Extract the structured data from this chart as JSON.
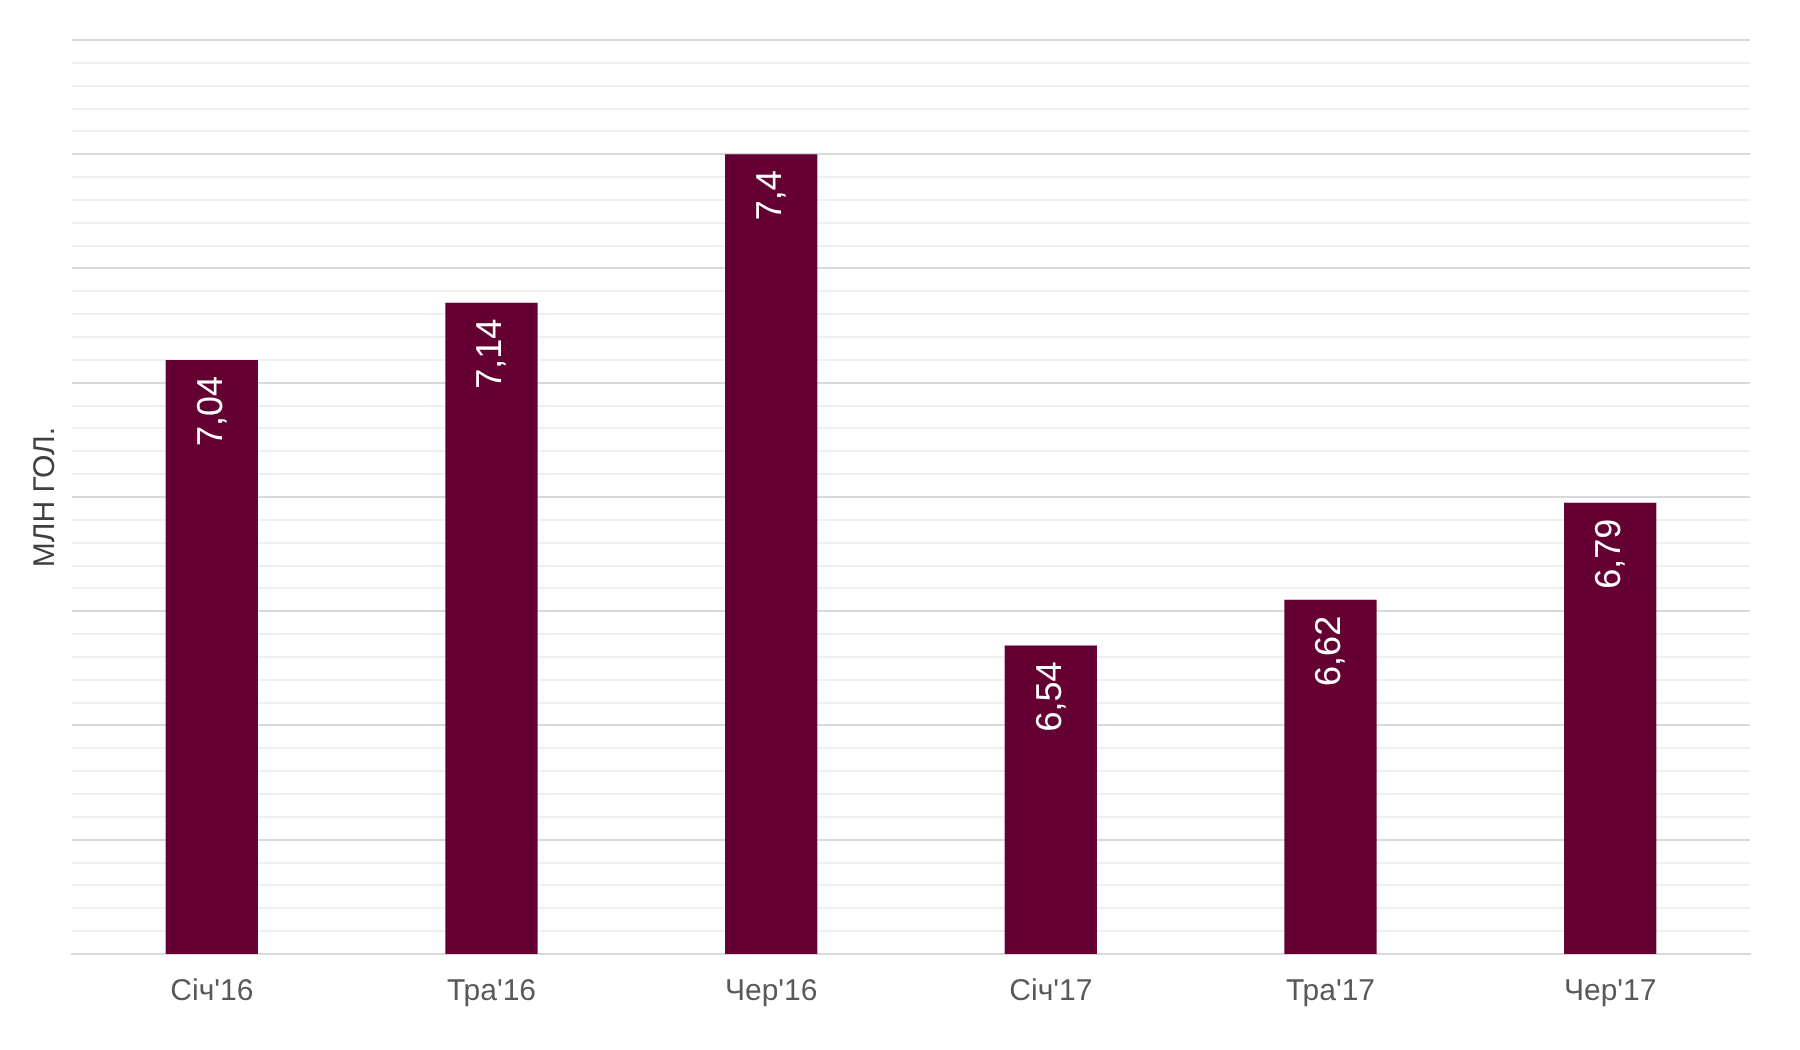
{
  "chart_data": {
    "type": "bar",
    "ylabel": "МЛН ГОЛ.",
    "categories": [
      "Січ'16",
      "Тра'16",
      "Чер'16",
      "Січ'17",
      "Тра'17",
      "Чер'17"
    ],
    "values": [
      7.04,
      7.14,
      7.4,
      6.54,
      6.62,
      6.79
    ],
    "value_labels": [
      "7,04",
      "7,14",
      "7,4",
      "6,54",
      "6,62",
      "6,79"
    ],
    "color": "#650032",
    "ylim": [
      6,
      7.6
    ],
    "yticks": [
      {
        "value": 6,
        "label": null
      },
      {
        "value": 6.04,
        "label": null
      },
      {
        "value": 6.08,
        "label": null
      },
      {
        "value": 6.12,
        "label": null
      },
      {
        "value": 6.16,
        "label": null
      },
      {
        "value": 6.2,
        "label": null
      },
      {
        "value": 6.24,
        "label": null
      },
      {
        "value": 6.28,
        "label": null
      },
      {
        "value": 6.32,
        "label": null
      },
      {
        "value": 6.36,
        "label": null
      },
      {
        "value": 6.4,
        "label": null
      },
      {
        "value": 6.44,
        "label": null
      },
      {
        "value": 6.48,
        "label": null
      },
      {
        "value": 6.52,
        "label": null
      },
      {
        "value": 6.56,
        "label": null
      },
      {
        "value": 6.6,
        "label": null
      },
      {
        "value": 6.64,
        "label": null
      },
      {
        "value": 6.68,
        "label": null
      },
      {
        "value": 6.72,
        "label": null
      },
      {
        "value": 6.76,
        "label": null
      },
      {
        "value": 6.8,
        "label": null
      },
      {
        "value": 6.84,
        "label": null
      },
      {
        "value": 6.88,
        "label": null
      },
      {
        "value": 6.92,
        "label": null
      },
      {
        "value": 6.96,
        "label": null
      },
      {
        "value": 7,
        "label": null
      },
      {
        "value": 7.04,
        "label": null
      },
      {
        "value": 7.08,
        "label": null
      },
      {
        "value": 7.12,
        "label": null
      },
      {
        "value": 7.16,
        "label": null
      },
      {
        "value": 7.2,
        "label": null
      },
      {
        "value": 7.24,
        "label": null
      },
      {
        "value": 7.28,
        "label": null
      },
      {
        "value": 7.32,
        "label": null
      },
      {
        "value": 7.36,
        "label": null
      },
      {
        "value": 7.4,
        "label": null
      },
      {
        "value": 7.44,
        "label": null
      },
      {
        "value": 7.48,
        "label": null
      },
      {
        "value": 7.52,
        "label": null
      },
      {
        "value": 7.56,
        "label": null
      },
      {
        "value": 7.6,
        "label": null
      }
    ],
    "grid": "y",
    "tick_labels": "x",
    "legend": false
  }
}
